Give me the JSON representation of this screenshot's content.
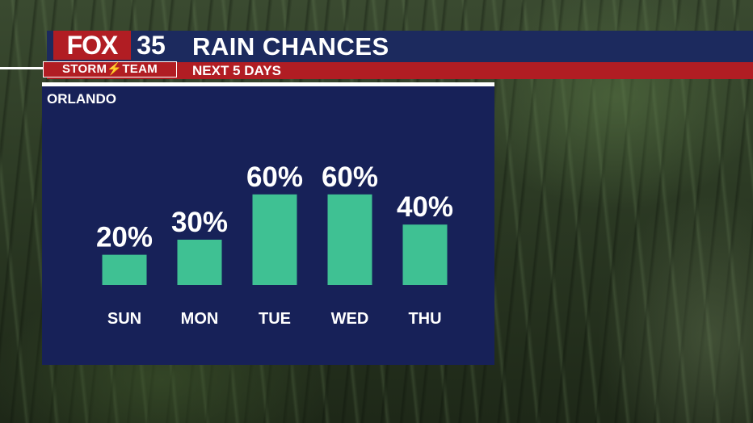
{
  "header": {
    "title": "RAIN CHANCES",
    "subtitle": "NEXT 5 DAYS"
  },
  "logo": {
    "brand": "FOX",
    "channel": "35",
    "team": "STORM⚡TEAM"
  },
  "panel": {
    "location": "ORLANDO"
  },
  "colors": {
    "title_bar": "#1c2a5e",
    "subtitle_bar": "#b11d23",
    "panel": "#172158",
    "bar": "#3fc193",
    "text": "#ffffff"
  },
  "chart_data": {
    "type": "bar",
    "categories": [
      "SUN",
      "MON",
      "TUE",
      "WED",
      "THU"
    ],
    "values": [
      20,
      30,
      60,
      60,
      40
    ],
    "data_labels": [
      "20%",
      "30%",
      "60%",
      "60%",
      "40%"
    ],
    "unit": "%",
    "title": "RAIN CHANCES",
    "subtitle": "NEXT 5 DAYS",
    "ylim": [
      0,
      100
    ],
    "grid": false,
    "legend": "none"
  }
}
